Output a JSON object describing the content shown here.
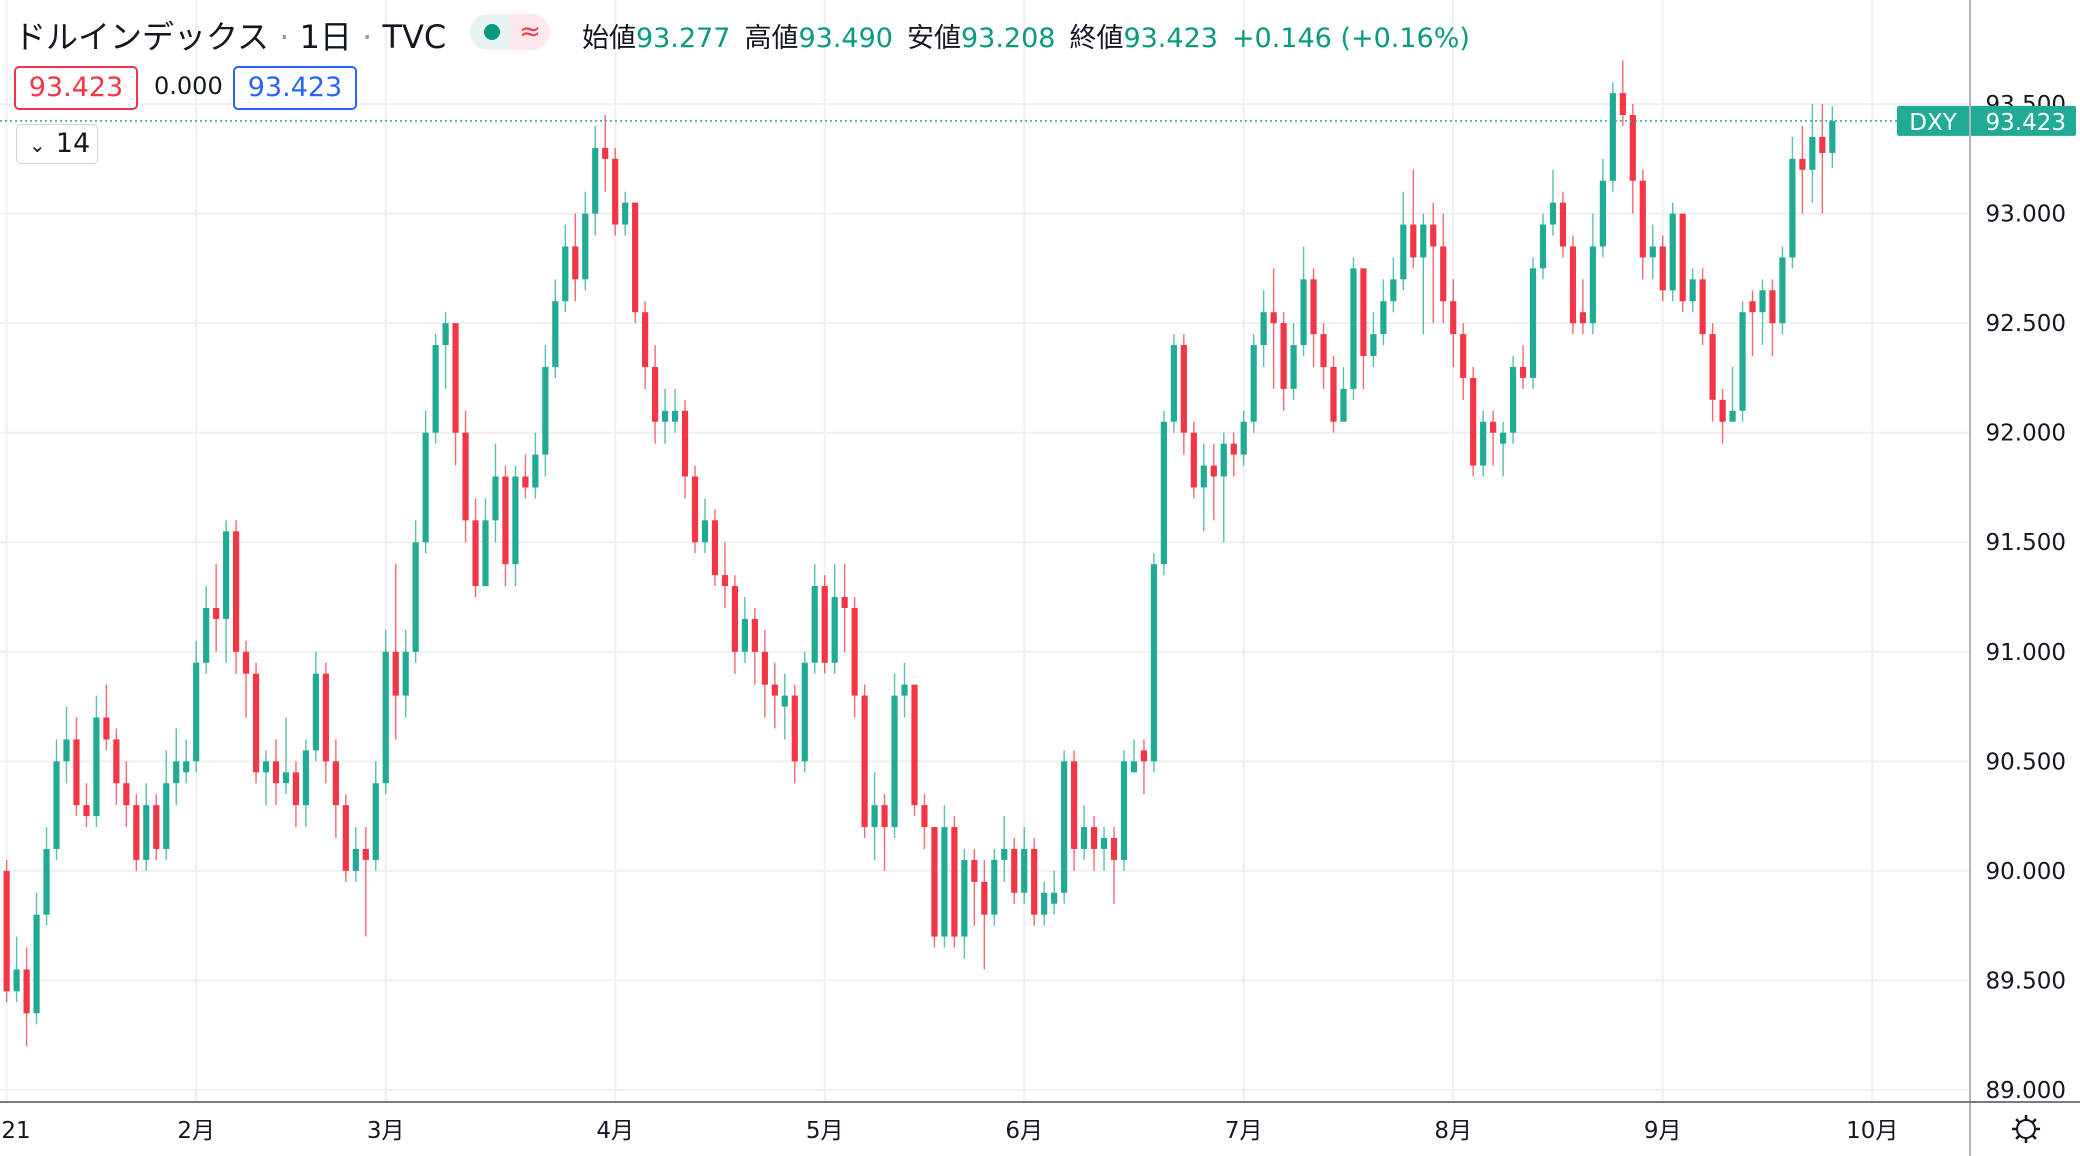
{
  "header": {
    "symbol": "ドルインデックス",
    "interval": "1日",
    "source": "TVC",
    "ohlc": [
      {
        "label": "始値",
        "value": "93.277"
      },
      {
        "label": "高値",
        "value": "93.490"
      },
      {
        "label": "安値",
        "value": "93.208"
      },
      {
        "label": "終値",
        "value": "93.423"
      }
    ],
    "change": "+0.146 (+0.16%)",
    "bid": "93.423",
    "spread": "0.000",
    "ask": "93.423",
    "indicator": "14"
  },
  "last_price": {
    "name": "DXY",
    "value": "93.423"
  },
  "chart_data": {
    "type": "candlestick",
    "up_color": "#22ab94",
    "down_color": "#f23645",
    "grid": true,
    "xlim": [
      -0.665,
      196.8
    ],
    "ylim": [
      88.945,
      93.975
    ],
    "xticks": [
      {
        "value": 0,
        "label": "21"
      },
      {
        "value": 19,
        "label": "2月"
      },
      {
        "value": 38,
        "label": "3月"
      },
      {
        "value": 61,
        "label": "4月"
      },
      {
        "value": 82,
        "label": "5月"
      },
      {
        "value": 102,
        "label": "6月"
      },
      {
        "value": 124,
        "label": "7月"
      },
      {
        "value": 145,
        "label": "8月"
      },
      {
        "value": 166,
        "label": "9月"
      },
      {
        "value": 187,
        "label": "10月"
      }
    ],
    "yticks": [
      {
        "value": 89,
        "label": "89.000"
      },
      {
        "value": 89.5,
        "label": "89.500"
      },
      {
        "value": 90,
        "label": "90.000"
      },
      {
        "value": 90.5,
        "label": "90.500"
      },
      {
        "value": 91,
        "label": "91.000"
      },
      {
        "value": 91.5,
        "label": "91.500"
      },
      {
        "value": 92,
        "label": "92.000"
      },
      {
        "value": 92.5,
        "label": "92.500"
      },
      {
        "value": 93,
        "label": "93.000"
      },
      {
        "value": 93.5,
        "label": "93.500"
      }
    ],
    "ohlc": [
      [
        90.0,
        90.05,
        89.4,
        89.45
      ],
      [
        89.45,
        89.7,
        89.4,
        89.55
      ],
      [
        89.55,
        89.65,
        89.2,
        89.35
      ],
      [
        89.35,
        89.9,
        89.3,
        89.8
      ],
      [
        89.8,
        90.2,
        89.75,
        90.1
      ],
      [
        90.1,
        90.6,
        90.05,
        90.5
      ],
      [
        90.5,
        90.75,
        90.4,
        90.6
      ],
      [
        90.6,
        90.7,
        90.25,
        90.3
      ],
      [
        90.3,
        90.4,
        90.2,
        90.25
      ],
      [
        90.25,
        90.8,
        90.2,
        90.7
      ],
      [
        90.7,
        90.85,
        90.55,
        90.6
      ],
      [
        90.6,
        90.65,
        90.3,
        90.4
      ],
      [
        90.4,
        90.5,
        90.2,
        90.3
      ],
      [
        90.3,
        90.35,
        90.0,
        90.05
      ],
      [
        90.05,
        90.4,
        90.0,
        90.3
      ],
      [
        90.3,
        90.35,
        90.05,
        90.1
      ],
      [
        90.1,
        90.55,
        90.05,
        90.4
      ],
      [
        90.4,
        90.65,
        90.3,
        90.5
      ],
      [
        90.45,
        90.6,
        90.4,
        90.5
      ],
      [
        90.5,
        91.05,
        90.45,
        90.95
      ],
      [
        90.95,
        91.3,
        90.9,
        91.2
      ],
      [
        91.2,
        91.4,
        91.0,
        91.15
      ],
      [
        91.15,
        91.6,
        90.95,
        91.55
      ],
      [
        91.55,
        91.6,
        90.9,
        91.0
      ],
      [
        91.0,
        91.05,
        90.7,
        90.9
      ],
      [
        90.9,
        90.95,
        90.4,
        90.45
      ],
      [
        90.45,
        90.55,
        90.3,
        90.5
      ],
      [
        90.5,
        90.6,
        90.3,
        90.4
      ],
      [
        90.4,
        90.7,
        90.35,
        90.45
      ],
      [
        90.45,
        90.5,
        90.2,
        90.3
      ],
      [
        90.3,
        90.6,
        90.2,
        90.55
      ],
      [
        90.55,
        91.0,
        90.5,
        90.9
      ],
      [
        90.9,
        90.95,
        90.4,
        90.5
      ],
      [
        90.5,
        90.6,
        90.15,
        90.3
      ],
      [
        90.3,
        90.35,
        89.95,
        90.0
      ],
      [
        90.0,
        90.2,
        89.95,
        90.1
      ],
      [
        90.1,
        90.2,
        89.7,
        90.05
      ],
      [
        90.05,
        90.5,
        90.0,
        90.4
      ],
      [
        90.4,
        91.1,
        90.35,
        91.0
      ],
      [
        91.0,
        91.4,
        90.6,
        90.8
      ],
      [
        90.8,
        91.1,
        90.7,
        91.0
      ],
      [
        91.0,
        91.6,
        90.95,
        91.5
      ],
      [
        91.5,
        92.1,
        91.45,
        92.0
      ],
      [
        92.0,
        92.45,
        91.95,
        92.4
      ],
      [
        92.4,
        92.55,
        92.2,
        92.5
      ],
      [
        92.5,
        92.5,
        91.85,
        92.0
      ],
      [
        92.0,
        92.1,
        91.5,
        91.6
      ],
      [
        91.6,
        91.7,
        91.25,
        91.3
      ],
      [
        91.3,
        91.7,
        91.3,
        91.6
      ],
      [
        91.6,
        91.95,
        91.5,
        91.8
      ],
      [
        91.8,
        91.85,
        91.3,
        91.4
      ],
      [
        91.4,
        91.85,
        91.3,
        91.8
      ],
      [
        91.8,
        91.9,
        91.7,
        91.75
      ],
      [
        91.75,
        92.0,
        91.7,
        91.9
      ],
      [
        91.9,
        92.4,
        91.8,
        92.3
      ],
      [
        92.3,
        92.7,
        92.25,
        92.6
      ],
      [
        92.6,
        92.95,
        92.55,
        92.85
      ],
      [
        92.85,
        93.0,
        92.6,
        92.7
      ],
      [
        92.7,
        93.1,
        92.65,
        93.0
      ],
      [
        93.0,
        93.4,
        92.9,
        93.3
      ],
      [
        93.3,
        93.45,
        93.1,
        93.25
      ],
      [
        93.25,
        93.3,
        92.9,
        92.95
      ],
      [
        92.95,
        93.1,
        92.9,
        93.05
      ],
      [
        93.05,
        93.05,
        92.5,
        92.55
      ],
      [
        92.55,
        92.6,
        92.2,
        92.3
      ],
      [
        92.3,
        92.4,
        91.95,
        92.05
      ],
      [
        92.05,
        92.2,
        91.95,
        92.1
      ],
      [
        92.05,
        92.2,
        92.0,
        92.1
      ],
      [
        92.1,
        92.15,
        91.7,
        91.8
      ],
      [
        91.8,
        91.85,
        91.45,
        91.5
      ],
      [
        91.5,
        91.7,
        91.45,
        91.6
      ],
      [
        91.6,
        91.65,
        91.3,
        91.35
      ],
      [
        91.35,
        91.5,
        91.2,
        91.3
      ],
      [
        91.3,
        91.35,
        90.9,
        91.0
      ],
      [
        91.0,
        91.25,
        90.95,
        91.15
      ],
      [
        91.15,
        91.2,
        90.85,
        91.0
      ],
      [
        91.0,
        91.1,
        90.7,
        90.85
      ],
      [
        90.85,
        90.95,
        90.65,
        90.8
      ],
      [
        90.75,
        90.9,
        90.6,
        90.8
      ],
      [
        90.8,
        90.85,
        90.4,
        90.5
      ],
      [
        90.5,
        91.0,
        90.45,
        90.95
      ],
      [
        90.95,
        91.4,
        90.9,
        91.3
      ],
      [
        91.3,
        91.35,
        90.9,
        90.95
      ],
      [
        90.95,
        91.4,
        90.9,
        91.25
      ],
      [
        91.25,
        91.4,
        91.0,
        91.2
      ],
      [
        91.2,
        91.25,
        90.7,
        90.8
      ],
      [
        90.8,
        90.85,
        90.15,
        90.2
      ],
      [
        90.2,
        90.45,
        90.05,
        90.3
      ],
      [
        90.3,
        90.35,
        90.0,
        90.2
      ],
      [
        90.2,
        90.9,
        90.15,
        90.8
      ],
      [
        90.8,
        90.95,
        90.7,
        90.85
      ],
      [
        90.85,
        90.85,
        90.25,
        90.3
      ],
      [
        90.3,
        90.35,
        90.1,
        90.2
      ],
      [
        90.2,
        90.2,
        89.65,
        89.7
      ],
      [
        89.7,
        90.3,
        89.65,
        90.2
      ],
      [
        90.2,
        90.25,
        89.65,
        89.7
      ],
      [
        89.7,
        90.1,
        89.6,
        90.05
      ],
      [
        90.05,
        90.1,
        89.75,
        89.95
      ],
      [
        89.95,
        90.05,
        89.55,
        89.8
      ],
      [
        89.8,
        90.1,
        89.75,
        90.05
      ],
      [
        90.05,
        90.25,
        89.95,
        90.1
      ],
      [
        90.1,
        90.15,
        89.85,
        89.9
      ],
      [
        89.9,
        90.2,
        89.85,
        90.1
      ],
      [
        90.1,
        90.15,
        89.75,
        89.8
      ],
      [
        89.8,
        89.95,
        89.75,
        89.9
      ],
      [
        89.85,
        90.0,
        89.8,
        89.9
      ],
      [
        89.9,
        90.55,
        89.85,
        90.5
      ],
      [
        90.5,
        90.55,
        90.0,
        90.1
      ],
      [
        90.1,
        90.3,
        90.05,
        90.2
      ],
      [
        90.2,
        90.25,
        90.0,
        90.1
      ],
      [
        90.1,
        90.2,
        90.0,
        90.15
      ],
      [
        90.15,
        90.2,
        89.85,
        90.05
      ],
      [
        90.05,
        90.55,
        90.0,
        90.5
      ],
      [
        90.45,
        90.6,
        90.45,
        90.5
      ],
      [
        90.55,
        90.6,
        90.35,
        90.5
      ],
      [
        90.5,
        91.45,
        90.45,
        91.4
      ],
      [
        91.4,
        92.1,
        91.35,
        92.05
      ],
      [
        92.05,
        92.45,
        92.0,
        92.4
      ],
      [
        92.4,
        92.45,
        91.9,
        92.0
      ],
      [
        92.0,
        92.05,
        91.7,
        91.75
      ],
      [
        91.75,
        91.95,
        91.55,
        91.85
      ],
      [
        91.85,
        91.95,
        91.6,
        91.8
      ],
      [
        91.8,
        92.0,
        91.5,
        91.95
      ],
      [
        91.95,
        92.0,
        91.8,
        91.9
      ],
      [
        91.9,
        92.1,
        91.85,
        92.05
      ],
      [
        92.05,
        92.45,
        92.0,
        92.4
      ],
      [
        92.4,
        92.65,
        92.3,
        92.55
      ],
      [
        92.55,
        92.75,
        92.2,
        92.5
      ],
      [
        92.5,
        92.55,
        92.1,
        92.2
      ],
      [
        92.2,
        92.5,
        92.15,
        92.4
      ],
      [
        92.4,
        92.85,
        92.35,
        92.7
      ],
      [
        92.7,
        92.75,
        92.3,
        92.45
      ],
      [
        92.45,
        92.5,
        92.2,
        92.3
      ],
      [
        92.3,
        92.35,
        92.0,
        92.05
      ],
      [
        92.05,
        92.3,
        92.05,
        92.2
      ],
      [
        92.2,
        92.8,
        92.15,
        92.75
      ],
      [
        92.75,
        92.75,
        92.2,
        92.35
      ],
      [
        92.35,
        92.55,
        92.3,
        92.45
      ],
      [
        92.45,
        92.7,
        92.4,
        92.6
      ],
      [
        92.6,
        92.8,
        92.55,
        92.7
      ],
      [
        92.7,
        93.1,
        92.65,
        92.95
      ],
      [
        92.95,
        93.2,
        92.75,
        92.8
      ],
      [
        92.8,
        93.0,
        92.45,
        92.95
      ],
      [
        92.95,
        93.05,
        92.5,
        92.85
      ],
      [
        92.85,
        93.0,
        92.5,
        92.6
      ],
      [
        92.6,
        92.7,
        92.3,
        92.45
      ],
      [
        92.45,
        92.5,
        92.15,
        92.25
      ],
      [
        92.25,
        92.3,
        91.8,
        91.85
      ],
      [
        91.85,
        92.1,
        91.8,
        92.05
      ],
      [
        92.05,
        92.1,
        91.85,
        92.0
      ],
      [
        91.95,
        92.05,
        91.8,
        92.0
      ],
      [
        92.0,
        92.35,
        91.95,
        92.3
      ],
      [
        92.3,
        92.4,
        92.2,
        92.25
      ],
      [
        92.25,
        92.8,
        92.2,
        92.75
      ],
      [
        92.75,
        93.0,
        92.7,
        92.95
      ],
      [
        92.95,
        93.2,
        92.9,
        93.05
      ],
      [
        93.05,
        93.1,
        92.8,
        92.85
      ],
      [
        92.85,
        92.9,
        92.45,
        92.5
      ],
      [
        92.55,
        92.7,
        92.45,
        92.5
      ],
      [
        92.5,
        93.0,
        92.45,
        92.85
      ],
      [
        92.85,
        93.25,
        92.8,
        93.15
      ],
      [
        93.15,
        93.6,
        93.1,
        93.55
      ],
      [
        93.55,
        93.7,
        93.4,
        93.45
      ],
      [
        93.45,
        93.5,
        93.0,
        93.15
      ],
      [
        93.15,
        93.2,
        92.7,
        92.8
      ],
      [
        92.8,
        92.95,
        92.7,
        92.85
      ],
      [
        92.85,
        92.9,
        92.6,
        92.65
      ],
      [
        92.65,
        93.05,
        92.6,
        93.0
      ],
      [
        93.0,
        93.0,
        92.55,
        92.6
      ],
      [
        92.6,
        92.75,
        92.55,
        92.7
      ],
      [
        92.7,
        92.75,
        92.4,
        92.45
      ],
      [
        92.45,
        92.5,
        92.05,
        92.15
      ],
      [
        92.15,
        92.2,
        91.95,
        92.05
      ],
      [
        92.05,
        92.3,
        92.05,
        92.1
      ],
      [
        92.1,
        92.6,
        92.05,
        92.55
      ],
      [
        92.6,
        92.65,
        92.35,
        92.55
      ],
      [
        92.55,
        92.7,
        92.4,
        92.65
      ],
      [
        92.65,
        92.7,
        92.35,
        92.5
      ],
      [
        92.5,
        92.85,
        92.45,
        92.8
      ],
      [
        92.8,
        93.35,
        92.75,
        93.25
      ],
      [
        93.25,
        93.4,
        93.0,
        93.2
      ],
      [
        93.2,
        93.5,
        93.05,
        93.35
      ],
      [
        93.35,
        93.5,
        93.0,
        93.277
      ],
      [
        93.277,
        93.49,
        93.208,
        93.423
      ]
    ]
  }
}
